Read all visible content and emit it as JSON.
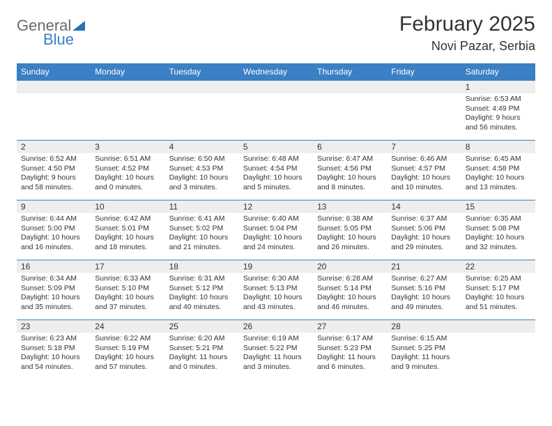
{
  "brand": {
    "part1": "General",
    "part2": "Blue"
  },
  "title": "February 2025",
  "location": "Novi Pazar, Serbia",
  "colors": {
    "header_bg": "#3b7fc4",
    "header_text": "#ffffff",
    "row_divider": "#3b7fc4",
    "daynum_bg": "#eeeeee",
    "body_text": "#333333",
    "background": "#ffffff"
  },
  "typography": {
    "title_fontsize": 30,
    "location_fontsize": 18,
    "weekday_fontsize": 12,
    "daynum_fontsize": 12,
    "body_fontsize": 10.5
  },
  "weekdays": [
    "Sunday",
    "Monday",
    "Tuesday",
    "Wednesday",
    "Thursday",
    "Friday",
    "Saturday"
  ],
  "weeks": [
    [
      {
        "day": "",
        "sunrise": "",
        "sunset": "",
        "daylight": ""
      },
      {
        "day": "",
        "sunrise": "",
        "sunset": "",
        "daylight": ""
      },
      {
        "day": "",
        "sunrise": "",
        "sunset": "",
        "daylight": ""
      },
      {
        "day": "",
        "sunrise": "",
        "sunset": "",
        "daylight": ""
      },
      {
        "day": "",
        "sunrise": "",
        "sunset": "",
        "daylight": ""
      },
      {
        "day": "",
        "sunrise": "",
        "sunset": "",
        "daylight": ""
      },
      {
        "day": "1",
        "sunrise": "Sunrise: 6:53 AM",
        "sunset": "Sunset: 4:49 PM",
        "daylight": "Daylight: 9 hours and 56 minutes."
      }
    ],
    [
      {
        "day": "2",
        "sunrise": "Sunrise: 6:52 AM",
        "sunset": "Sunset: 4:50 PM",
        "daylight": "Daylight: 9 hours and 58 minutes."
      },
      {
        "day": "3",
        "sunrise": "Sunrise: 6:51 AM",
        "sunset": "Sunset: 4:52 PM",
        "daylight": "Daylight: 10 hours and 0 minutes."
      },
      {
        "day": "4",
        "sunrise": "Sunrise: 6:50 AM",
        "sunset": "Sunset: 4:53 PM",
        "daylight": "Daylight: 10 hours and 3 minutes."
      },
      {
        "day": "5",
        "sunrise": "Sunrise: 6:48 AM",
        "sunset": "Sunset: 4:54 PM",
        "daylight": "Daylight: 10 hours and 5 minutes."
      },
      {
        "day": "6",
        "sunrise": "Sunrise: 6:47 AM",
        "sunset": "Sunset: 4:56 PM",
        "daylight": "Daylight: 10 hours and 8 minutes."
      },
      {
        "day": "7",
        "sunrise": "Sunrise: 6:46 AM",
        "sunset": "Sunset: 4:57 PM",
        "daylight": "Daylight: 10 hours and 10 minutes."
      },
      {
        "day": "8",
        "sunrise": "Sunrise: 6:45 AM",
        "sunset": "Sunset: 4:58 PM",
        "daylight": "Daylight: 10 hours and 13 minutes."
      }
    ],
    [
      {
        "day": "9",
        "sunrise": "Sunrise: 6:44 AM",
        "sunset": "Sunset: 5:00 PM",
        "daylight": "Daylight: 10 hours and 16 minutes."
      },
      {
        "day": "10",
        "sunrise": "Sunrise: 6:42 AM",
        "sunset": "Sunset: 5:01 PM",
        "daylight": "Daylight: 10 hours and 18 minutes."
      },
      {
        "day": "11",
        "sunrise": "Sunrise: 6:41 AM",
        "sunset": "Sunset: 5:02 PM",
        "daylight": "Daylight: 10 hours and 21 minutes."
      },
      {
        "day": "12",
        "sunrise": "Sunrise: 6:40 AM",
        "sunset": "Sunset: 5:04 PM",
        "daylight": "Daylight: 10 hours and 24 minutes."
      },
      {
        "day": "13",
        "sunrise": "Sunrise: 6:38 AM",
        "sunset": "Sunset: 5:05 PM",
        "daylight": "Daylight: 10 hours and 26 minutes."
      },
      {
        "day": "14",
        "sunrise": "Sunrise: 6:37 AM",
        "sunset": "Sunset: 5:06 PM",
        "daylight": "Daylight: 10 hours and 29 minutes."
      },
      {
        "day": "15",
        "sunrise": "Sunrise: 6:35 AM",
        "sunset": "Sunset: 5:08 PM",
        "daylight": "Daylight: 10 hours and 32 minutes."
      }
    ],
    [
      {
        "day": "16",
        "sunrise": "Sunrise: 6:34 AM",
        "sunset": "Sunset: 5:09 PM",
        "daylight": "Daylight: 10 hours and 35 minutes."
      },
      {
        "day": "17",
        "sunrise": "Sunrise: 6:33 AM",
        "sunset": "Sunset: 5:10 PM",
        "daylight": "Daylight: 10 hours and 37 minutes."
      },
      {
        "day": "18",
        "sunrise": "Sunrise: 6:31 AM",
        "sunset": "Sunset: 5:12 PM",
        "daylight": "Daylight: 10 hours and 40 minutes."
      },
      {
        "day": "19",
        "sunrise": "Sunrise: 6:30 AM",
        "sunset": "Sunset: 5:13 PM",
        "daylight": "Daylight: 10 hours and 43 minutes."
      },
      {
        "day": "20",
        "sunrise": "Sunrise: 6:28 AM",
        "sunset": "Sunset: 5:14 PM",
        "daylight": "Daylight: 10 hours and 46 minutes."
      },
      {
        "day": "21",
        "sunrise": "Sunrise: 6:27 AM",
        "sunset": "Sunset: 5:16 PM",
        "daylight": "Daylight: 10 hours and 49 minutes."
      },
      {
        "day": "22",
        "sunrise": "Sunrise: 6:25 AM",
        "sunset": "Sunset: 5:17 PM",
        "daylight": "Daylight: 10 hours and 51 minutes."
      }
    ],
    [
      {
        "day": "23",
        "sunrise": "Sunrise: 6:23 AM",
        "sunset": "Sunset: 5:18 PM",
        "daylight": "Daylight: 10 hours and 54 minutes."
      },
      {
        "day": "24",
        "sunrise": "Sunrise: 6:22 AM",
        "sunset": "Sunset: 5:19 PM",
        "daylight": "Daylight: 10 hours and 57 minutes."
      },
      {
        "day": "25",
        "sunrise": "Sunrise: 6:20 AM",
        "sunset": "Sunset: 5:21 PM",
        "daylight": "Daylight: 11 hours and 0 minutes."
      },
      {
        "day": "26",
        "sunrise": "Sunrise: 6:19 AM",
        "sunset": "Sunset: 5:22 PM",
        "daylight": "Daylight: 11 hours and 3 minutes."
      },
      {
        "day": "27",
        "sunrise": "Sunrise: 6:17 AM",
        "sunset": "Sunset: 5:23 PM",
        "daylight": "Daylight: 11 hours and 6 minutes."
      },
      {
        "day": "28",
        "sunrise": "Sunrise: 6:15 AM",
        "sunset": "Sunset: 5:25 PM",
        "daylight": "Daylight: 11 hours and 9 minutes."
      },
      {
        "day": "",
        "sunrise": "",
        "sunset": "",
        "daylight": ""
      }
    ]
  ]
}
